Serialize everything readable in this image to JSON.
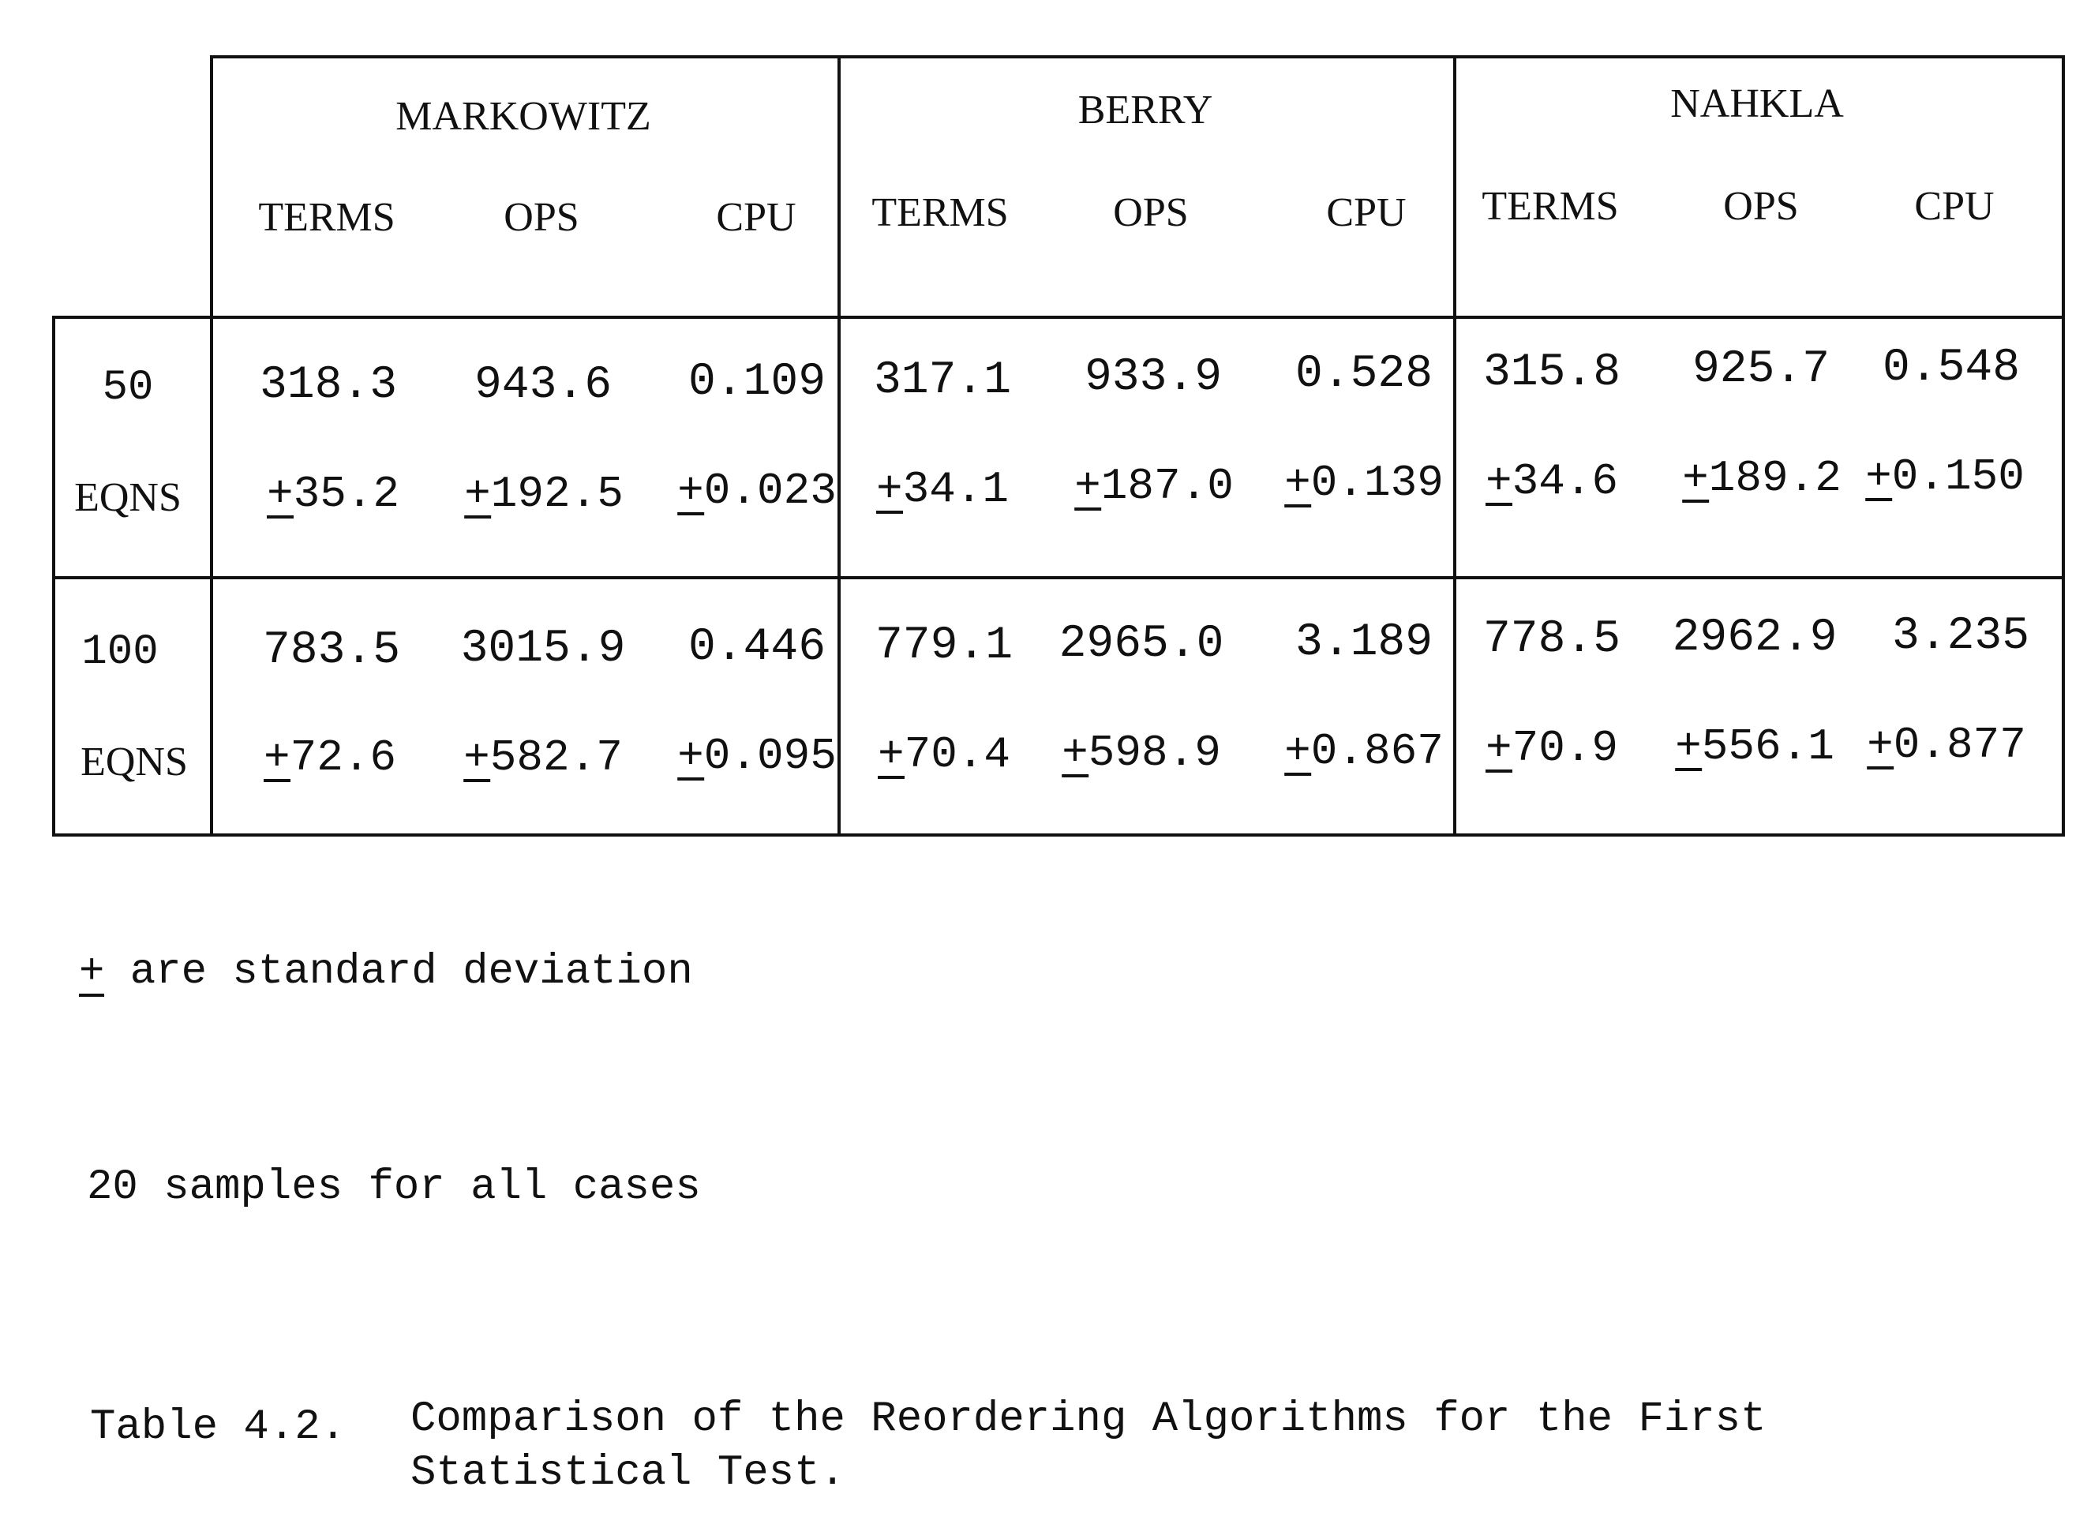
{
  "table": {
    "groups": [
      {
        "label": "MARKOWITZ"
      },
      {
        "label": "BERRY"
      },
      {
        "label": "NAHKLA"
      }
    ],
    "subheaders": [
      "TERMS",
      "OPS",
      "CPU",
      "TERMS",
      "OPS",
      "CPU",
      "TERMS",
      "OPS",
      "CPU"
    ],
    "rows": [
      {
        "size": "50",
        "unit": "EQNS",
        "means": [
          "318.3",
          "943.6",
          "0.109",
          "317.1",
          "933.9",
          "0.528",
          "315.8",
          "925.7",
          "0.548"
        ],
        "sds": [
          "35.2",
          "192.5",
          "0.023",
          "34.1",
          "187.0",
          "0.139",
          "34.6",
          "189.2",
          "0.150"
        ]
      },
      {
        "size": "100",
        "unit": "EQNS",
        "means": [
          "783.5",
          "3015.9",
          "0.446",
          "779.1",
          "2965.0",
          "3.189",
          "778.5",
          "2962.9",
          "3.235"
        ],
        "sds": [
          "72.6",
          "582.7",
          "0.095",
          "70.4",
          "598.9",
          "0.867",
          "70.9",
          "556.1",
          "0.877"
        ]
      }
    ]
  },
  "notes": {
    "pm_symbol": "+",
    "sd_note": " are standard deviation",
    "samples_note": "20 samples for all cases"
  },
  "caption": {
    "label": "Table 4.2.",
    "text": "Comparison of the Reordering Algorithms for the First Statistical Test."
  }
}
